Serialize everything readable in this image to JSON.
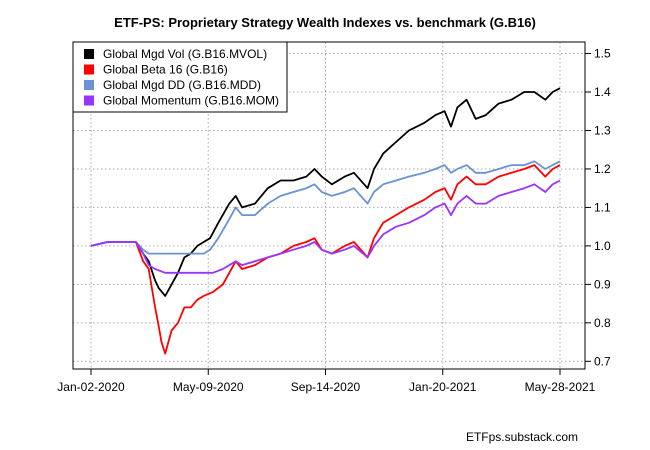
{
  "chart_data": {
    "type": "line",
    "title": "ETF-PS: Proprietary Strategy Wealth Indexes vs. benchmark (G.B16)",
    "xlabel": "",
    "ylabel": "",
    "x_range": [
      "2020-01-02",
      "2021-05-28"
    ],
    "ylim": [
      0.68,
      1.53
    ],
    "x_ticks": [
      {
        "date": "2020-01-02",
        "label": "Jan-02-2020"
      },
      {
        "date": "2020-05-09",
        "label": "May-09-2020"
      },
      {
        "date": "2020-09-14",
        "label": "Sep-14-2020"
      },
      {
        "date": "2021-01-20",
        "label": "Jan-20-2021"
      },
      {
        "date": "2021-05-28",
        "label": "May-28-2021"
      }
    ],
    "y_ticks": [
      0.7,
      0.8,
      0.9,
      1.0,
      1.1,
      1.2,
      1.3,
      1.4,
      1.5
    ],
    "y_axis_side": "right",
    "grid": true,
    "legend_position": "top-left",
    "credit": "ETFps.substack.com",
    "series": [
      {
        "name": "Global Mgd Vol (G.B16.MVOL)",
        "color": "#000000",
        "points": [
          [
            "2020-01-02",
            1.0
          ],
          [
            "2020-01-20",
            1.01
          ],
          [
            "2020-02-05",
            1.01
          ],
          [
            "2020-02-20",
            1.01
          ],
          [
            "2020-02-28",
            0.98
          ],
          [
            "2020-03-05",
            0.96
          ],
          [
            "2020-03-12",
            0.91
          ],
          [
            "2020-03-16",
            0.89
          ],
          [
            "2020-03-23",
            0.87
          ],
          [
            "2020-03-30",
            0.9
          ],
          [
            "2020-04-06",
            0.93
          ],
          [
            "2020-04-13",
            0.97
          ],
          [
            "2020-04-20",
            0.98
          ],
          [
            "2020-04-27",
            1.0
          ],
          [
            "2020-05-04",
            1.01
          ],
          [
            "2020-05-11",
            1.02
          ],
          [
            "2020-05-20",
            1.06
          ],
          [
            "2020-06-01",
            1.11
          ],
          [
            "2020-06-08",
            1.13
          ],
          [
            "2020-06-15",
            1.1
          ],
          [
            "2020-06-29",
            1.11
          ],
          [
            "2020-07-13",
            1.15
          ],
          [
            "2020-07-27",
            1.17
          ],
          [
            "2020-08-10",
            1.17
          ],
          [
            "2020-08-24",
            1.18
          ],
          [
            "2020-09-02",
            1.2
          ],
          [
            "2020-09-10",
            1.18
          ],
          [
            "2020-09-21",
            1.16
          ],
          [
            "2020-10-05",
            1.18
          ],
          [
            "2020-10-15",
            1.19
          ],
          [
            "2020-10-30",
            1.15
          ],
          [
            "2020-11-06",
            1.2
          ],
          [
            "2020-11-16",
            1.24
          ],
          [
            "2020-11-30",
            1.27
          ],
          [
            "2020-12-14",
            1.3
          ],
          [
            "2020-12-31",
            1.32
          ],
          [
            "2021-01-12",
            1.34
          ],
          [
            "2021-01-22",
            1.35
          ],
          [
            "2021-01-29",
            1.31
          ],
          [
            "2021-02-05",
            1.36
          ],
          [
            "2021-02-15",
            1.38
          ],
          [
            "2021-02-25",
            1.33
          ],
          [
            "2021-03-08",
            1.34
          ],
          [
            "2021-03-22",
            1.37
          ],
          [
            "2021-04-05",
            1.38
          ],
          [
            "2021-04-19",
            1.4
          ],
          [
            "2021-04-30",
            1.4
          ],
          [
            "2021-05-12",
            1.38
          ],
          [
            "2021-05-20",
            1.4
          ],
          [
            "2021-05-28",
            1.41
          ]
        ]
      },
      {
        "name": "Global Beta 16 (G.B16)",
        "color": "#ff0000",
        "points": [
          [
            "2020-01-02",
            1.0
          ],
          [
            "2020-01-20",
            1.01
          ],
          [
            "2020-02-05",
            1.01
          ],
          [
            "2020-02-20",
            1.01
          ],
          [
            "2020-02-28",
            0.96
          ],
          [
            "2020-03-05",
            0.94
          ],
          [
            "2020-03-12",
            0.84
          ],
          [
            "2020-03-16",
            0.79
          ],
          [
            "2020-03-19",
            0.75
          ],
          [
            "2020-03-23",
            0.72
          ],
          [
            "2020-03-30",
            0.78
          ],
          [
            "2020-04-06",
            0.8
          ],
          [
            "2020-04-13",
            0.84
          ],
          [
            "2020-04-20",
            0.84
          ],
          [
            "2020-04-27",
            0.86
          ],
          [
            "2020-05-04",
            0.87
          ],
          [
            "2020-05-14",
            0.88
          ],
          [
            "2020-05-25",
            0.9
          ],
          [
            "2020-06-08",
            0.96
          ],
          [
            "2020-06-15",
            0.94
          ],
          [
            "2020-06-29",
            0.95
          ],
          [
            "2020-07-13",
            0.97
          ],
          [
            "2020-07-27",
            0.98
          ],
          [
            "2020-08-10",
            1.0
          ],
          [
            "2020-08-24",
            1.01
          ],
          [
            "2020-09-02",
            1.02
          ],
          [
            "2020-09-10",
            0.99
          ],
          [
            "2020-09-21",
            0.98
          ],
          [
            "2020-10-05",
            1.0
          ],
          [
            "2020-10-15",
            1.01
          ],
          [
            "2020-10-30",
            0.97
          ],
          [
            "2020-11-06",
            1.02
          ],
          [
            "2020-11-16",
            1.06
          ],
          [
            "2020-11-30",
            1.08
          ],
          [
            "2020-12-14",
            1.1
          ],
          [
            "2020-12-31",
            1.12
          ],
          [
            "2021-01-12",
            1.14
          ],
          [
            "2021-01-22",
            1.15
          ],
          [
            "2021-01-29",
            1.12
          ],
          [
            "2021-02-05",
            1.16
          ],
          [
            "2021-02-15",
            1.18
          ],
          [
            "2021-02-25",
            1.16
          ],
          [
            "2021-03-08",
            1.16
          ],
          [
            "2021-03-22",
            1.18
          ],
          [
            "2021-04-05",
            1.19
          ],
          [
            "2021-04-19",
            1.2
          ],
          [
            "2021-04-30",
            1.21
          ],
          [
            "2021-05-12",
            1.18
          ],
          [
            "2021-05-20",
            1.2
          ],
          [
            "2021-05-28",
            1.21
          ]
        ]
      },
      {
        "name": "Global Mgd DD (G.B16.MDD)",
        "color": "#6a93d4",
        "points": [
          [
            "2020-01-02",
            1.0
          ],
          [
            "2020-01-20",
            1.01
          ],
          [
            "2020-02-05",
            1.01
          ],
          [
            "2020-02-20",
            1.01
          ],
          [
            "2020-02-28",
            0.99
          ],
          [
            "2020-03-05",
            0.98
          ],
          [
            "2020-03-12",
            0.98
          ],
          [
            "2020-03-23",
            0.98
          ],
          [
            "2020-04-06",
            0.98
          ],
          [
            "2020-04-20",
            0.98
          ],
          [
            "2020-05-04",
            0.98
          ],
          [
            "2020-05-11",
            0.99
          ],
          [
            "2020-05-20",
            1.02
          ],
          [
            "2020-06-01",
            1.07
          ],
          [
            "2020-06-08",
            1.1
          ],
          [
            "2020-06-15",
            1.08
          ],
          [
            "2020-06-29",
            1.08
          ],
          [
            "2020-07-13",
            1.11
          ],
          [
            "2020-07-27",
            1.13
          ],
          [
            "2020-08-10",
            1.14
          ],
          [
            "2020-08-24",
            1.15
          ],
          [
            "2020-09-02",
            1.16
          ],
          [
            "2020-09-10",
            1.14
          ],
          [
            "2020-09-21",
            1.13
          ],
          [
            "2020-10-05",
            1.14
          ],
          [
            "2020-10-15",
            1.15
          ],
          [
            "2020-10-30",
            1.11
          ],
          [
            "2020-11-06",
            1.14
          ],
          [
            "2020-11-16",
            1.16
          ],
          [
            "2020-11-30",
            1.17
          ],
          [
            "2020-12-14",
            1.18
          ],
          [
            "2020-12-31",
            1.19
          ],
          [
            "2021-01-12",
            1.2
          ],
          [
            "2021-01-22",
            1.21
          ],
          [
            "2021-01-29",
            1.19
          ],
          [
            "2021-02-05",
            1.2
          ],
          [
            "2021-02-15",
            1.21
          ],
          [
            "2021-02-25",
            1.19
          ],
          [
            "2021-03-08",
            1.19
          ],
          [
            "2021-03-22",
            1.2
          ],
          [
            "2021-04-05",
            1.21
          ],
          [
            "2021-04-19",
            1.21
          ],
          [
            "2021-04-30",
            1.22
          ],
          [
            "2021-05-12",
            1.2
          ],
          [
            "2021-05-20",
            1.21
          ],
          [
            "2021-05-28",
            1.22
          ]
        ]
      },
      {
        "name": "Global Momentum (G.B16.MOM)",
        "color": "#9933ff",
        "points": [
          [
            "2020-01-02",
            1.0
          ],
          [
            "2020-01-20",
            1.01
          ],
          [
            "2020-02-05",
            1.01
          ],
          [
            "2020-02-20",
            1.01
          ],
          [
            "2020-02-28",
            0.98
          ],
          [
            "2020-03-05",
            0.95
          ],
          [
            "2020-03-12",
            0.94
          ],
          [
            "2020-03-23",
            0.93
          ],
          [
            "2020-04-06",
            0.93
          ],
          [
            "2020-04-20",
            0.93
          ],
          [
            "2020-05-04",
            0.93
          ],
          [
            "2020-05-14",
            0.93
          ],
          [
            "2020-05-25",
            0.94
          ],
          [
            "2020-06-08",
            0.96
          ],
          [
            "2020-06-15",
            0.95
          ],
          [
            "2020-06-29",
            0.96
          ],
          [
            "2020-07-13",
            0.97
          ],
          [
            "2020-07-27",
            0.98
          ],
          [
            "2020-08-10",
            0.99
          ],
          [
            "2020-08-24",
            1.0
          ],
          [
            "2020-09-02",
            1.01
          ],
          [
            "2020-09-10",
            0.99
          ],
          [
            "2020-09-21",
            0.98
          ],
          [
            "2020-10-05",
            0.99
          ],
          [
            "2020-10-15",
            1.0
          ],
          [
            "2020-10-30",
            0.97
          ],
          [
            "2020-11-06",
            1.0
          ],
          [
            "2020-11-16",
            1.03
          ],
          [
            "2020-11-30",
            1.05
          ],
          [
            "2020-12-14",
            1.06
          ],
          [
            "2020-12-31",
            1.08
          ],
          [
            "2021-01-12",
            1.1
          ],
          [
            "2021-01-22",
            1.11
          ],
          [
            "2021-01-29",
            1.08
          ],
          [
            "2021-02-05",
            1.11
          ],
          [
            "2021-02-15",
            1.13
          ],
          [
            "2021-02-25",
            1.11
          ],
          [
            "2021-03-08",
            1.11
          ],
          [
            "2021-03-22",
            1.13
          ],
          [
            "2021-04-05",
            1.14
          ],
          [
            "2021-04-19",
            1.15
          ],
          [
            "2021-04-30",
            1.16
          ],
          [
            "2021-05-12",
            1.14
          ],
          [
            "2021-05-20",
            1.16
          ],
          [
            "2021-05-28",
            1.17
          ]
        ]
      }
    ]
  }
}
